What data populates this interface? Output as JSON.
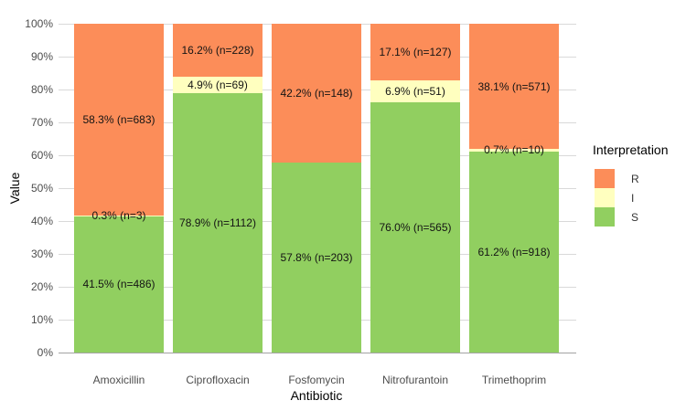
{
  "chart_data": {
    "type": "bar",
    "variant": "stacked-percent",
    "title": "",
    "xlabel": "Antibiotic",
    "ylabel": "Value",
    "categories": [
      "Amoxicillin",
      "Ciprofloxacin",
      "Fosfomycin",
      "Nitrofurantoin",
      "Trimethoprim"
    ],
    "y_ticks": [
      "0%",
      "10%",
      "20%",
      "30%",
      "40%",
      "50%",
      "60%",
      "70%",
      "80%",
      "90%",
      "100%"
    ],
    "ylim": [
      0,
      100
    ],
    "grid": "horizontal-major-only",
    "legend": {
      "title": "Interpretation",
      "position": "right",
      "entries": [
        {
          "label": "R",
          "color": "#FC8D59"
        },
        {
          "label": "I",
          "color": "#FFFFBF"
        },
        {
          "label": "S",
          "color": "#91CF60"
        }
      ]
    },
    "series": [
      {
        "name": "S",
        "color": "#91CF60",
        "values": [
          41.5,
          78.9,
          57.8,
          76.0,
          61.2
        ],
        "counts": [
          486,
          1112,
          203,
          565,
          918
        ],
        "labels": [
          "41.5% (n=486)",
          "78.9% (n=1112)",
          "57.8% (n=203)",
          "76.0% (n=565)",
          "61.2% (n=918)"
        ]
      },
      {
        "name": "I",
        "color": "#FFFFBF",
        "values": [
          0.3,
          4.9,
          0,
          6.9,
          0.7
        ],
        "counts": [
          3,
          69,
          0,
          51,
          10
        ],
        "labels": [
          "0.3% (n=3)",
          "4.9% (n=69)",
          "",
          "6.9% (n=51)",
          "0.7% (n=10)"
        ]
      },
      {
        "name": "R",
        "color": "#FC8D59",
        "values": [
          58.3,
          16.2,
          42.2,
          17.1,
          38.1
        ],
        "counts": [
          683,
          228,
          148,
          127,
          571
        ],
        "labels": [
          "58.3% (n=683)",
          "16.2% (n=228)",
          "42.2% (n=148)",
          "17.1% (n=127)",
          "38.1% (n=571)"
        ]
      }
    ]
  }
}
